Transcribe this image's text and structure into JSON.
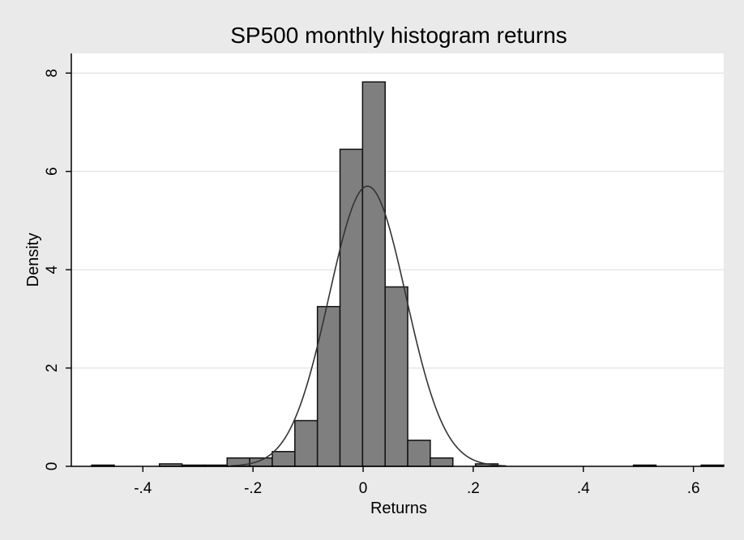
{
  "chart_data": {
    "type": "bar",
    "title": "SP500 monthly histogram returns",
    "xlabel": "Returns",
    "ylabel": "Density",
    "xlim": [
      -0.53,
      0.655
    ],
    "ylim": [
      0,
      8.4
    ],
    "xticks": [
      {
        "value": -0.4,
        "label": "-.4"
      },
      {
        "value": -0.2,
        "label": "-.2"
      },
      {
        "value": 0,
        "label": "0"
      },
      {
        "value": 0.2,
        "label": ".2"
      },
      {
        "value": 0.4,
        "label": ".4"
      },
      {
        "value": 0.6,
        "label": ".6"
      }
    ],
    "yticks": [
      {
        "value": 0,
        "label": "0"
      },
      {
        "value": 2,
        "label": "2"
      },
      {
        "value": 4,
        "label": "4"
      },
      {
        "value": 6,
        "label": "6"
      },
      {
        "value": 8,
        "label": "8"
      }
    ],
    "grid": "horizontal",
    "bin_width": 0.041,
    "bins": [
      {
        "start": -0.493,
        "density": 0.025
      },
      {
        "start": -0.452,
        "density": 0
      },
      {
        "start": -0.411,
        "density": 0
      },
      {
        "start": -0.37,
        "density": 0.05
      },
      {
        "start": -0.329,
        "density": 0.025
      },
      {
        "start": -0.288,
        "density": 0.025
      },
      {
        "start": -0.247,
        "density": 0.17
      },
      {
        "start": -0.206,
        "density": 0.17
      },
      {
        "start": -0.165,
        "density": 0.3
      },
      {
        "start": -0.124,
        "density": 0.93
      },
      {
        "start": -0.083,
        "density": 3.25
      },
      {
        "start": -0.042,
        "density": 6.45
      },
      {
        "start": -0.001,
        "density": 7.82
      },
      {
        "start": 0.04,
        "density": 3.65
      },
      {
        "start": 0.081,
        "density": 0.53
      },
      {
        "start": 0.122,
        "density": 0.17
      },
      {
        "start": 0.163,
        "density": 0
      },
      {
        "start": 0.204,
        "density": 0.05
      },
      {
        "start": 0.245,
        "density": 0
      },
      {
        "start": 0.286,
        "density": 0
      },
      {
        "start": 0.327,
        "density": 0
      },
      {
        "start": 0.368,
        "density": 0
      },
      {
        "start": 0.409,
        "density": 0
      },
      {
        "start": 0.45,
        "density": 0
      },
      {
        "start": 0.491,
        "density": 0.025
      },
      {
        "start": 0.532,
        "density": 0
      },
      {
        "start": 0.573,
        "density": 0
      },
      {
        "start": 0.614,
        "density": 0.025
      }
    ],
    "normal_overlay": {
      "mean": 0.008,
      "sd": 0.07,
      "curve_xlim": [
        -0.24,
        0.26
      ]
    },
    "colors": {
      "page_background": "#eaeaea",
      "plot_background": "#ffffff",
      "bar_fill": "#7f7f7f",
      "bar_stroke": "#111111",
      "curve": "#333333",
      "grid": "#e4e4e4"
    }
  }
}
